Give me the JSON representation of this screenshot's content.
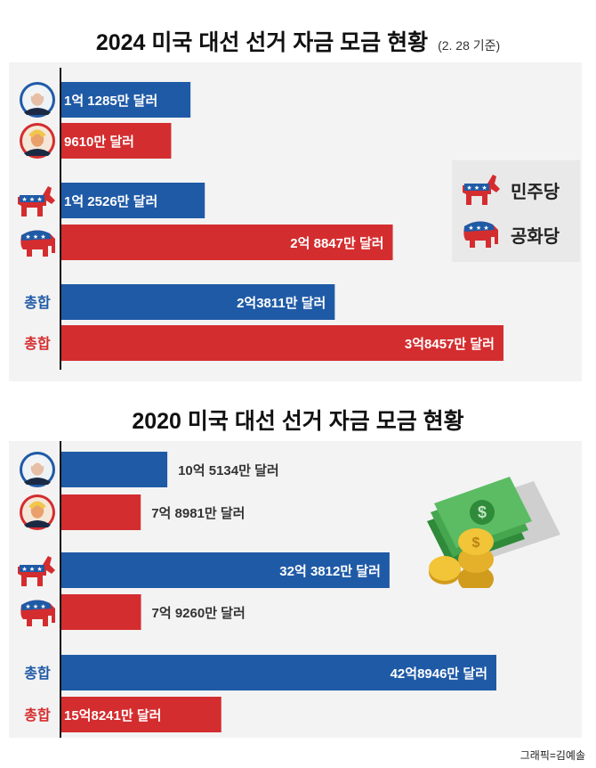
{
  "colors": {
    "dem": "#1f5aa6",
    "rep": "#d42d2f",
    "axis": "#111111"
  },
  "chart_data": [
    {
      "type": "bar",
      "title": "2024 미국 대선 선거 자금 모금 현황",
      "subtitle": "(2. 28 기준)",
      "unit": "억 달러",
      "rows": [
        {
          "group": "candidate",
          "party": "민주당",
          "icon": "biden-portrait-icon",
          "value": 1.1285,
          "label": "1억 1285만 달러"
        },
        {
          "group": "candidate",
          "party": "공화당",
          "icon": "trump-portrait-icon",
          "value": 0.961,
          "label": "9610만 달러"
        },
        {
          "group": "party",
          "party": "민주당",
          "icon": "democratic-donkey-icon",
          "value": 1.2526,
          "label": "1억 2526만 달러"
        },
        {
          "group": "party",
          "party": "공화당",
          "icon": "republican-elephant-icon",
          "value": 2.8847,
          "label": "2억 8847만 달러"
        },
        {
          "group": "total",
          "party": "민주당",
          "row_label": "총합",
          "value": 2.3811,
          "label": "2억3811만 달러"
        },
        {
          "group": "total",
          "party": "공화당",
          "row_label": "총합",
          "value": 3.8457,
          "label": "3억8457만 달러"
        }
      ],
      "legend": [
        {
          "party": "민주당",
          "icon": "democratic-donkey-icon"
        },
        {
          "party": "공화당",
          "icon": "republican-elephant-icon"
        }
      ]
    },
    {
      "type": "bar",
      "title": "2020 미국 대선 선거 자금 모금 현황",
      "unit": "억 달러",
      "rows": [
        {
          "group": "candidate",
          "party": "민주당",
          "icon": "biden-portrait-icon",
          "value": 10.5134,
          "label": "10억 5134만 달러"
        },
        {
          "group": "candidate",
          "party": "공화당",
          "icon": "trump-portrait-icon",
          "value": 7.8981,
          "label": "7억 8981만 달러"
        },
        {
          "group": "party",
          "party": "민주당",
          "icon": "democratic-donkey-icon",
          "value": 32.3812,
          "label": "32억 3812만 달러"
        },
        {
          "group": "party",
          "party": "공화당",
          "icon": "republican-elephant-icon",
          "value": 7.926,
          "label": "7억 9260만 달러"
        },
        {
          "group": "total",
          "party": "민주당",
          "row_label": "총합",
          "value": 42.8946,
          "label": "42억8946만 달러"
        },
        {
          "group": "total",
          "party": "공화당",
          "row_label": "총합",
          "value": 15.8241,
          "label": "15억8241만 달러"
        }
      ]
    }
  ],
  "credit": "그래픽=김예솔"
}
